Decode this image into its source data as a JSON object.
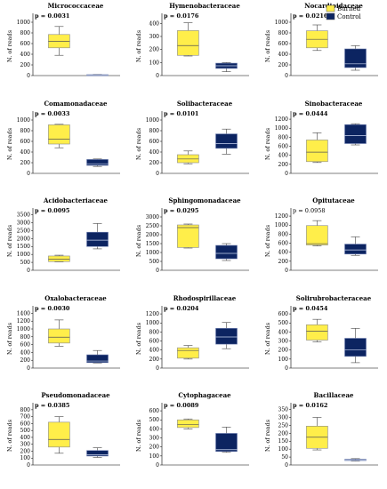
{
  "legend": [
    {
      "label": "Burned",
      "color": "#ffee4a"
    },
    {
      "label": "Control",
      "color": "#0c2461"
    }
  ],
  "chart_data": [
    {
      "type": "boxplot",
      "title": "Micrococcaceae",
      "p_label": "p = 0.0031",
      "p_bold": true,
      "ylabel": "N. of reads",
      "ticks": [
        0,
        200,
        400,
        600,
        800,
        1000
      ],
      "ylim": [
        0,
        1100
      ],
      "series": [
        {
          "name": "Burned",
          "min": 380,
          "q1": 520,
          "median": 640,
          "q3": 770,
          "max": 920
        },
        {
          "name": "Control",
          "min": 5,
          "q1": 8,
          "median": 12,
          "q3": 18,
          "max": 22
        }
      ]
    },
    {
      "type": "boxplot",
      "title": "Hymenobacteraceae",
      "p_label": "p = 0.0176",
      "p_bold": true,
      "ylabel": "N. of reads",
      "ticks": [
        0,
        100,
        200,
        300,
        400
      ],
      "ylim": [
        0,
        450
      ],
      "series": [
        {
          "name": "Burned",
          "min": 150,
          "q1": 155,
          "median": 230,
          "q3": 345,
          "max": 405
        },
        {
          "name": "Control",
          "min": 30,
          "q1": 55,
          "median": 75,
          "q3": 95,
          "max": 100
        }
      ]
    },
    {
      "type": "boxplot",
      "title": "Nocardioidaceae",
      "p_label": "p = 0.0216",
      "p_bold": true,
      "ylabel": "N. of reads",
      "ticks": [
        0,
        200,
        400,
        600,
        800,
        1000
      ],
      "ylim": [
        0,
        1100
      ],
      "series": [
        {
          "name": "Burned",
          "min": 470,
          "q1": 520,
          "median": 680,
          "q3": 840,
          "max": 950
        },
        {
          "name": "Control",
          "min": 100,
          "q1": 150,
          "median": 220,
          "q3": 500,
          "max": 560
        }
      ]
    },
    {
      "type": "boxplot",
      "title": "Comamonadaceae",
      "p_label": "p = 0.0033",
      "p_bold": true,
      "ylabel": "N. of reads",
      "ticks": [
        0,
        200,
        400,
        600,
        800,
        1000
      ],
      "ylim": [
        0,
        1100
      ],
      "series": [
        {
          "name": "Burned",
          "min": 480,
          "q1": 550,
          "median": 640,
          "q3": 910,
          "max": 920
        },
        {
          "name": "Control",
          "min": 130,
          "q1": 150,
          "median": 180,
          "q3": 260,
          "max": 270
        }
      ]
    },
    {
      "type": "boxplot",
      "title": "Solibacteraceae",
      "p_label": "p = 0.0101",
      "p_bold": true,
      "ylabel": "N. of reads",
      "ticks": [
        0,
        200,
        400,
        600,
        800,
        1000
      ],
      "ylim": [
        0,
        1100
      ],
      "series": [
        {
          "name": "Burned",
          "min": 180,
          "q1": 200,
          "median": 270,
          "q3": 350,
          "max": 420
        },
        {
          "name": "Control",
          "min": 360,
          "q1": 470,
          "median": 560,
          "q3": 740,
          "max": 830
        }
      ]
    },
    {
      "type": "boxplot",
      "title": "Sinobacteraceae",
      "p_label": "p = 0.0444",
      "p_bold": true,
      "ylabel": "N. of reads",
      "ticks": [
        0,
        200,
        400,
        600,
        800,
        1000,
        1200
      ],
      "ylim": [
        0,
        1300
      ],
      "series": [
        {
          "name": "Burned",
          "min": 240,
          "q1": 260,
          "median": 470,
          "q3": 740,
          "max": 900
        },
        {
          "name": "Control",
          "min": 630,
          "q1": 660,
          "median": 840,
          "q3": 1080,
          "max": 1100
        }
      ]
    },
    {
      "type": "boxplot",
      "title": "Acidobacteriaceae",
      "p_label": "p = 0.0095",
      "p_bold": true,
      "ylabel": "N. of reads",
      "ticks": [
        0,
        500,
        1000,
        1500,
        2000,
        2500,
        3000,
        3500
      ],
      "ylim": [
        0,
        3700
      ],
      "series": [
        {
          "name": "Burned",
          "min": 530,
          "q1": 550,
          "median": 700,
          "q3": 900,
          "max": 950
        },
        {
          "name": "Control",
          "min": 1350,
          "q1": 1500,
          "median": 1900,
          "q3": 2400,
          "max": 2950
        }
      ]
    },
    {
      "type": "boxplot",
      "title": "Sphingomonadaceae",
      "p_label": "p = 0.0295",
      "p_bold": true,
      "ylabel": "N. of reads",
      "ticks": [
        0,
        500,
        1000,
        1500,
        2000,
        2500,
        3000
      ],
      "ylim": [
        0,
        3300
      ],
      "series": [
        {
          "name": "Burned",
          "min": 1250,
          "q1": 1280,
          "median": 2400,
          "q3": 2550,
          "max": 2600
        },
        {
          "name": "Control",
          "min": 550,
          "q1": 650,
          "median": 950,
          "q3": 1400,
          "max": 1500
        }
      ]
    },
    {
      "type": "boxplot",
      "title": "Opitutaceae",
      "p_label": "p = 0.0958",
      "p_bold": false,
      "ylabel": "N. of reads",
      "ticks": [
        0,
        200,
        400,
        600,
        800,
        1000,
        1200
      ],
      "ylim": [
        0,
        1300
      ],
      "series": [
        {
          "name": "Burned",
          "min": 540,
          "q1": 560,
          "median": 590,
          "q3": 990,
          "max": 1100
        },
        {
          "name": "Control",
          "min": 330,
          "q1": 360,
          "median": 450,
          "q3": 580,
          "max": 740
        }
      ]
    },
    {
      "type": "boxplot",
      "title": "Oxalobacteraceae",
      "p_label": "p = 0.0030",
      "p_bold": true,
      "ylabel": "N. of reads",
      "ticks": [
        0,
        200,
        400,
        600,
        800,
        1000,
        1200,
        1400
      ],
      "ylim": [
        0,
        1500
      ],
      "series": [
        {
          "name": "Burned",
          "min": 560,
          "q1": 640,
          "median": 790,
          "q3": 1000,
          "max": 1230
        },
        {
          "name": "Control",
          "min": 130,
          "q1": 140,
          "median": 180,
          "q3": 340,
          "max": 450
        }
      ]
    },
    {
      "type": "boxplot",
      "title": "Rhodospirillaceae",
      "p_label": "p = 0.0204",
      "p_bold": true,
      "ylabel": "N. of reads",
      "ticks": [
        0,
        200,
        400,
        600,
        800,
        1000,
        1200
      ],
      "ylim": [
        0,
        1300
      ],
      "series": [
        {
          "name": "Burned",
          "min": 200,
          "q1": 220,
          "median": 390,
          "q3": 450,
          "max": 500
        },
        {
          "name": "Control",
          "min": 430,
          "q1": 530,
          "median": 690,
          "q3": 880,
          "max": 1010
        }
      ]
    },
    {
      "type": "boxplot",
      "title": "Solirubrobacteraceae",
      "p_label": "p = 0.0454",
      "p_bold": true,
      "ylabel": "N. of reads",
      "ticks": [
        0,
        100,
        200,
        300,
        400,
        500,
        600
      ],
      "ylim": [
        0,
        650
      ],
      "series": [
        {
          "name": "Burned",
          "min": 290,
          "q1": 310,
          "median": 410,
          "q3": 480,
          "max": 540
        },
        {
          "name": "Control",
          "min": 60,
          "q1": 130,
          "median": 200,
          "q3": 330,
          "max": 440
        }
      ]
    },
    {
      "type": "boxplot",
      "title": "Pseudomonadaceae",
      "p_label": "p = 0.0385",
      "p_bold": true,
      "ylabel": "N. of reads",
      "ticks": [
        0,
        100,
        200,
        300,
        400,
        500,
        600,
        700,
        800
      ],
      "ylim": [
        0,
        850
      ],
      "series": [
        {
          "name": "Burned",
          "min": 170,
          "q1": 260,
          "median": 370,
          "q3": 620,
          "max": 700
        },
        {
          "name": "Control",
          "min": 110,
          "q1": 130,
          "median": 150,
          "q3": 210,
          "max": 250
        }
      ]
    },
    {
      "type": "boxplot",
      "title": "Cytophagaceae",
      "p_label": "p = 0.0089",
      "p_bold": true,
      "ylabel": "N. of reads",
      "ticks": [
        0,
        100,
        200,
        300,
        400,
        500,
        600
      ],
      "ylim": [
        0,
        650
      ],
      "series": [
        {
          "name": "Burned",
          "min": 400,
          "q1": 415,
          "median": 450,
          "q3": 500,
          "max": 510
        },
        {
          "name": "Control",
          "min": 140,
          "q1": 150,
          "median": 170,
          "q3": 350,
          "max": 420
        }
      ]
    },
    {
      "type": "boxplot",
      "title": "Bacillaceae",
      "p_label": "p = 0.0162",
      "p_bold": true,
      "ylabel": "N. of reads",
      "ticks": [
        0,
        50,
        100,
        150,
        200,
        250,
        300,
        350
      ],
      "ylim": [
        0,
        370
      ],
      "series": [
        {
          "name": "Burned",
          "min": 95,
          "q1": 105,
          "median": 175,
          "q3": 245,
          "max": 300
        },
        {
          "name": "Control",
          "min": 25,
          "q1": 28,
          "median": 32,
          "q3": 36,
          "max": 40
        }
      ]
    }
  ]
}
